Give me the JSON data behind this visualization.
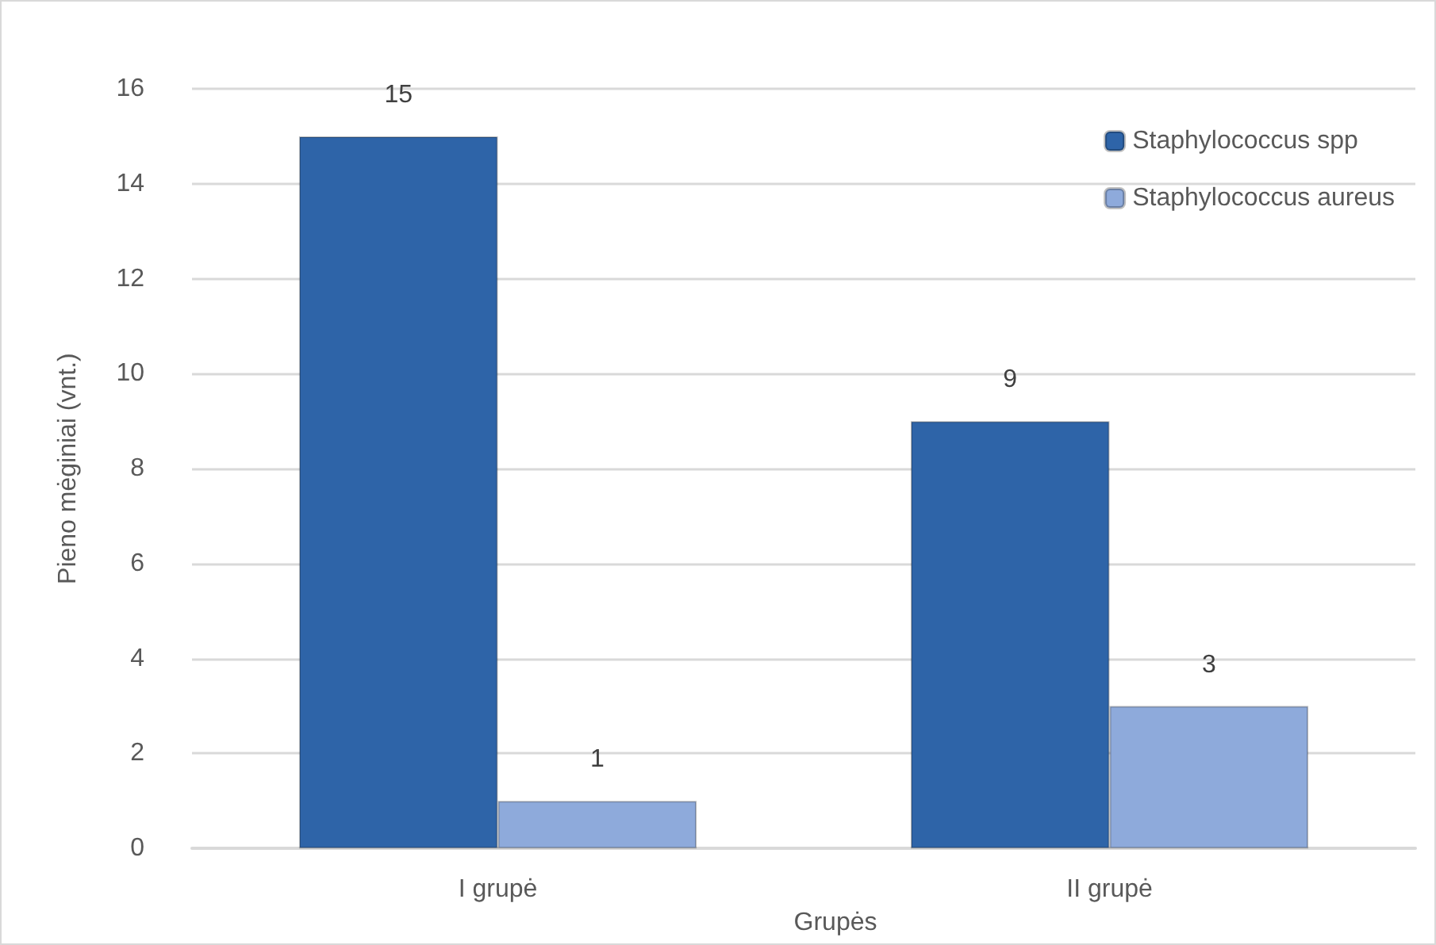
{
  "chart_data": {
    "type": "bar",
    "xlabel": "Grupės",
    "ylabel": "Pieno mėginiai (vnt.)",
    "categories": [
      "I grupė",
      "II grupė"
    ],
    "series": [
      {
        "name": "Staphylococcus spp",
        "color": "#2e64a8",
        "values": [
          15,
          9
        ]
      },
      {
        "name": "Staphylococcus aureus",
        "color": "#8eaadb",
        "values": [
          1,
          3
        ]
      }
    ],
    "ylim": [
      0,
      16
    ],
    "yticks": [
      0,
      2,
      4,
      6,
      8,
      10,
      12,
      14,
      16
    ],
    "grid": "y",
    "legend": "top right",
    "data_labels": true
  }
}
